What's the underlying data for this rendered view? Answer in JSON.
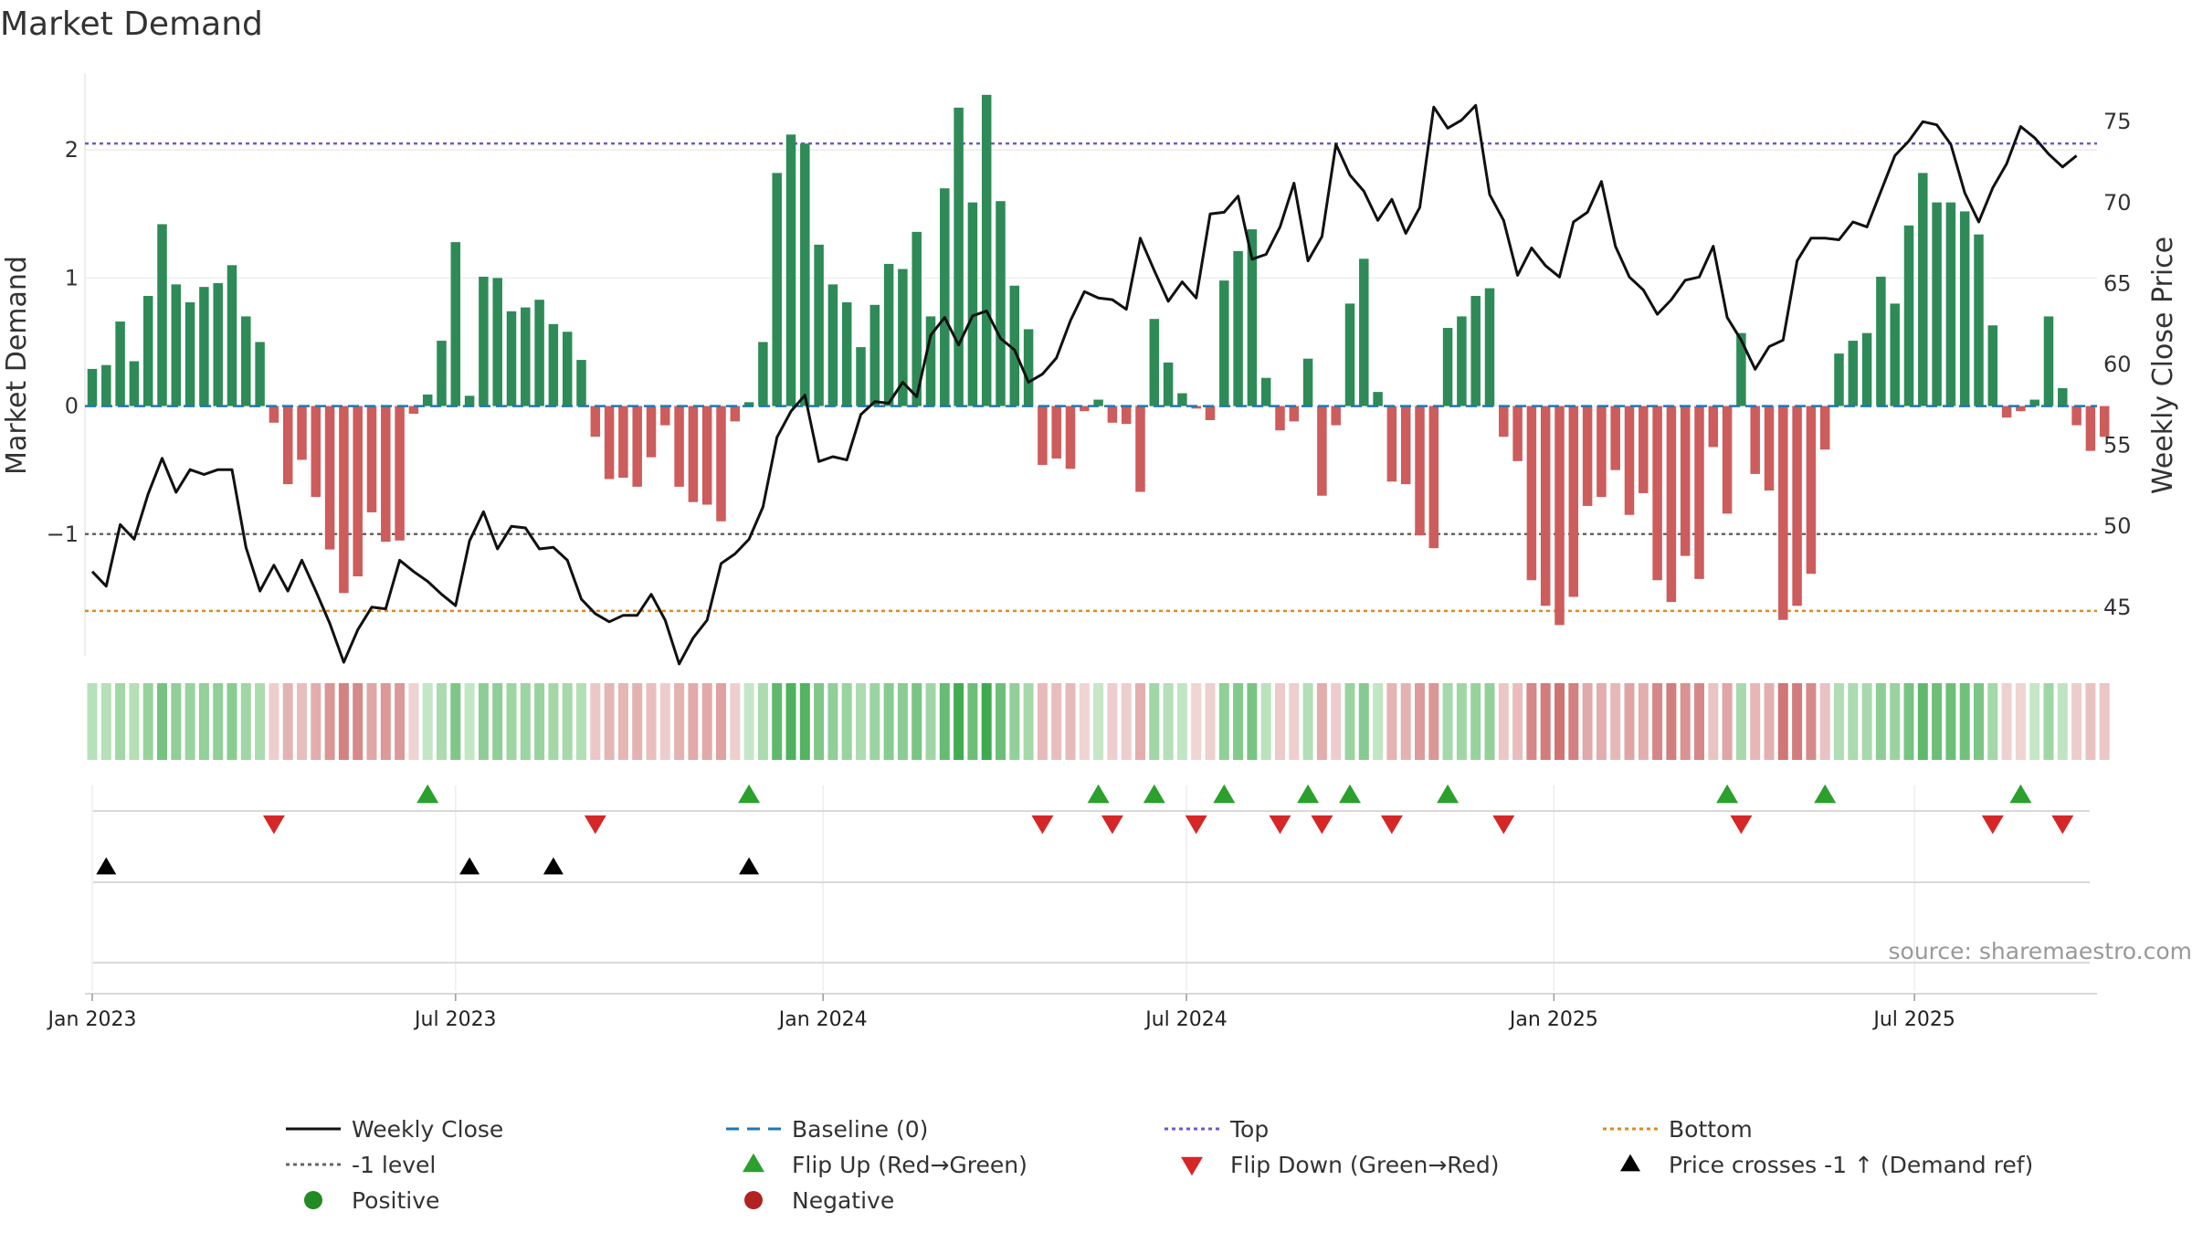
{
  "chart_data": {
    "type": "bar+line",
    "title": "Market Demand",
    "ylabel_left": "Market Demand",
    "ylabel_right": "Weekly Close Price",
    "left_yticks": [
      "2",
      "1",
      "0",
      "−1"
    ],
    "left_ytick_values": [
      2,
      1,
      0,
      -1
    ],
    "left_ylim": [
      -1.95,
      2.6
    ],
    "right_yticks": [
      "75",
      "70",
      "65",
      "60",
      "55",
      "50",
      "45"
    ],
    "right_ytick_values": [
      75,
      70,
      65,
      60,
      55,
      50,
      45
    ],
    "right_ylim": [
      42,
      78
    ],
    "x_ticks": [
      "Jan 2023",
      "Jul 2023",
      "Jan 2024",
      "Jul 2024",
      "Jan 2025",
      "Jul 2025"
    ],
    "x_tick_weeks": [
      0,
      26,
      52.3,
      78.3,
      104.6,
      130.4
    ],
    "levels": {
      "top": 2.05,
      "bottom": -1.6,
      "minus_one": -1.0,
      "baseline": 0
    },
    "colors": {
      "positive": "#2e8b57",
      "negative": "#cd5c5c",
      "price": "#111111",
      "top": "#6a5acd",
      "bottom": "#e08a1e",
      "minus_one": "#666666",
      "baseline": "#1f77b4",
      "flip_up": "#2ca02c",
      "flip_down": "#d62728",
      "cross": "#000000"
    },
    "demand": [
      0.29,
      0.32,
      0.66,
      0.35,
      0.86,
      1.42,
      0.95,
      0.81,
      0.93,
      0.96,
      1.1,
      0.7,
      0.5,
      -0.13,
      -0.61,
      -0.42,
      -0.71,
      -1.12,
      -1.46,
      -1.33,
      -0.83,
      -1.06,
      -1.05,
      -0.06,
      0.09,
      0.51,
      1.28,
      0.08,
      1.01,
      1.0,
      0.74,
      0.77,
      0.83,
      0.64,
      0.58,
      0.36,
      -0.24,
      -0.57,
      -0.56,
      -0.63,
      -0.4,
      -0.15,
      -0.63,
      -0.75,
      -0.77,
      -0.9,
      -0.12,
      0.03,
      0.5,
      1.82,
      2.12,
      2.05,
      1.26,
      0.95,
      0.81,
      0.46,
      0.79,
      1.11,
      1.07,
      1.36,
      0.7,
      1.7,
      2.33,
      1.59,
      2.43,
      1.6,
      0.94,
      0.6,
      -0.46,
      -0.41,
      -0.49,
      -0.04,
      0.05,
      -0.13,
      -0.14,
      -0.67,
      0.68,
      0.34,
      0.1,
      -0.02,
      -0.11,
      0.98,
      1.21,
      1.38,
      0.22,
      -0.19,
      -0.12,
      0.37,
      -0.7,
      -0.15,
      0.8,
      1.15,
      0.11,
      -0.59,
      -0.61,
      -1.01,
      -1.11,
      0.61,
      0.7,
      0.86,
      0.92,
      -0.24,
      -0.43,
      -1.36,
      -1.56,
      -1.71,
      -1.49,
      -0.78,
      -0.71,
      -0.5,
      -0.85,
      -0.68,
      -1.36,
      -1.53,
      -1.17,
      -1.35,
      -0.32,
      -0.84,
      0.57,
      -0.53,
      -0.66,
      -1.67,
      -1.56,
      -1.31,
      -0.34,
      0.41,
      0.51,
      0.57,
      1.01,
      0.8,
      1.41,
      1.82,
      1.59,
      1.59,
      1.52,
      1.34,
      0.63,
      -0.09,
      -0.04,
      0.05,
      0.7,
      0.14,
      -0.15,
      -0.35,
      -0.24
    ],
    "weekly_close": [
      47.2,
      46.3,
      50.1,
      49.2,
      52.0,
      54.2,
      52.1,
      53.5,
      53.2,
      53.5,
      53.5,
      48.7,
      46.0,
      47.6,
      46.0,
      47.9,
      46.0,
      44.0,
      41.6,
      43.6,
      45.0,
      44.9,
      47.9,
      47.2,
      46.6,
      45.8,
      45.1,
      49.1,
      50.9,
      48.6,
      50.0,
      49.9,
      48.6,
      48.7,
      47.9,
      45.5,
      44.6,
      44.1,
      44.5,
      44.5,
      45.8,
      44.2,
      41.5,
      43.1,
      44.2,
      47.7,
      48.3,
      49.2,
      51.2,
      55.5,
      57.1,
      58.1,
      54.0,
      54.3,
      54.1,
      56.9,
      57.7,
      57.6,
      58.9,
      58.0,
      61.8,
      62.9,
      61.2,
      63.0,
      63.3,
      61.6,
      60.9,
      58.9,
      59.4,
      60.4,
      62.7,
      64.5,
      64.1,
      64.0,
      63.4,
      67.8,
      65.8,
      63.9,
      65.1,
      64.1,
      69.3,
      69.4,
      70.4,
      66.5,
      66.8,
      68.5,
      71.2,
      66.4,
      67.9,
      73.6,
      71.7,
      70.7,
      68.9,
      70.2,
      68.1,
      69.7,
      75.9,
      74.6,
      75.1,
      76.0,
      70.5,
      68.9,
      65.5,
      67.2,
      66.1,
      65.4,
      68.8,
      69.4,
      71.3,
      67.3,
      65.4,
      64.6,
      63.1,
      64.0,
      65.2,
      65.4,
      67.3,
      62.9,
      61.5,
      59.7,
      61.1,
      61.5,
      66.4,
      67.8,
      67.8,
      67.7,
      68.8,
      68.5,
      70.7,
      72.9,
      73.8,
      75.0,
      74.8,
      73.6,
      70.6,
      68.8,
      70.9,
      72.4,
      74.7,
      74.0,
      73.0,
      72.2,
      72.9
    ],
    "flip_up_weeks": [
      24,
      47,
      72,
      76,
      81,
      87,
      90,
      97,
      117,
      124,
      138
    ],
    "flip_down_weeks": [
      13,
      36,
      68,
      73,
      79,
      85,
      88,
      93,
      101,
      118,
      136,
      141
    ],
    "price_cross_weeks": [
      1,
      27,
      33,
      47
    ],
    "legend": [
      {
        "label": "Weekly Close",
        "kind": "line-black"
      },
      {
        "label": "Baseline (0)",
        "kind": "dash-blue"
      },
      {
        "label": "Top",
        "kind": "dot-purple"
      },
      {
        "label": "Bottom",
        "kind": "dot-orange"
      },
      {
        "label": "-1 level",
        "kind": "dot-gray"
      },
      {
        "label": "Flip Up (Red→Green)",
        "kind": "tri-up-green"
      },
      {
        "label": "Flip Down (Green→Red)",
        "kind": "tri-down-red"
      },
      {
        "label": "Price crosses -1 ↑ (Demand ref)",
        "kind": "tri-up-black"
      },
      {
        "label": "Positive",
        "kind": "dot-green"
      },
      {
        "label": "Negative",
        "kind": "dot-red"
      }
    ],
    "source": "source: sharemaestro.com"
  }
}
